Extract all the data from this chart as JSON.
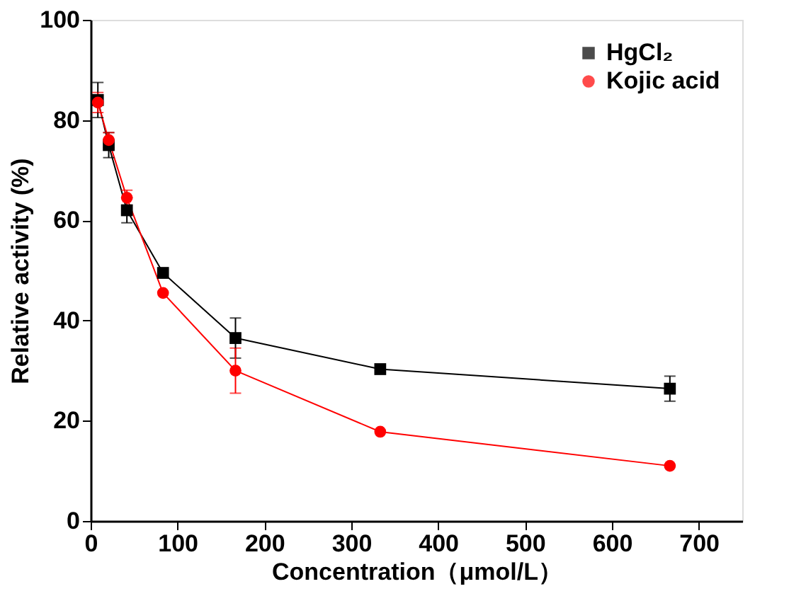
{
  "chart_data": {
    "type": "line",
    "xlabel": "Concentration（μmol/L）",
    "ylabel": "Relative activity (%)",
    "x": [
      8.3,
      20.8,
      41.7,
      83.3,
      166.7,
      333.3,
      666.7
    ],
    "series": [
      {
        "name": "HgCl₂",
        "color": "#000000",
        "marker": "square",
        "values": [
          84,
          75,
          62,
          49.5,
          36.5,
          30.3,
          26.4
        ],
        "errors": [
          3.5,
          2.5,
          2.5,
          null,
          4,
          null,
          2.5
        ]
      },
      {
        "name": "Kojic acid",
        "color": "#ff0000",
        "marker": "circle",
        "values": [
          83.5,
          76,
          64.5,
          45.5,
          30,
          17.8,
          11
        ],
        "errors": [
          2,
          1.5,
          1.5,
          null,
          4.5,
          null,
          null
        ]
      }
    ],
    "xlim": [
      0,
      750
    ],
    "xticks": [
      0,
      100,
      200,
      300,
      400,
      500,
      600,
      700
    ],
    "ylim": [
      0,
      100
    ],
    "yticks": [
      0,
      20,
      40,
      60,
      80,
      100
    ],
    "grid": false,
    "legend": "top right"
  }
}
